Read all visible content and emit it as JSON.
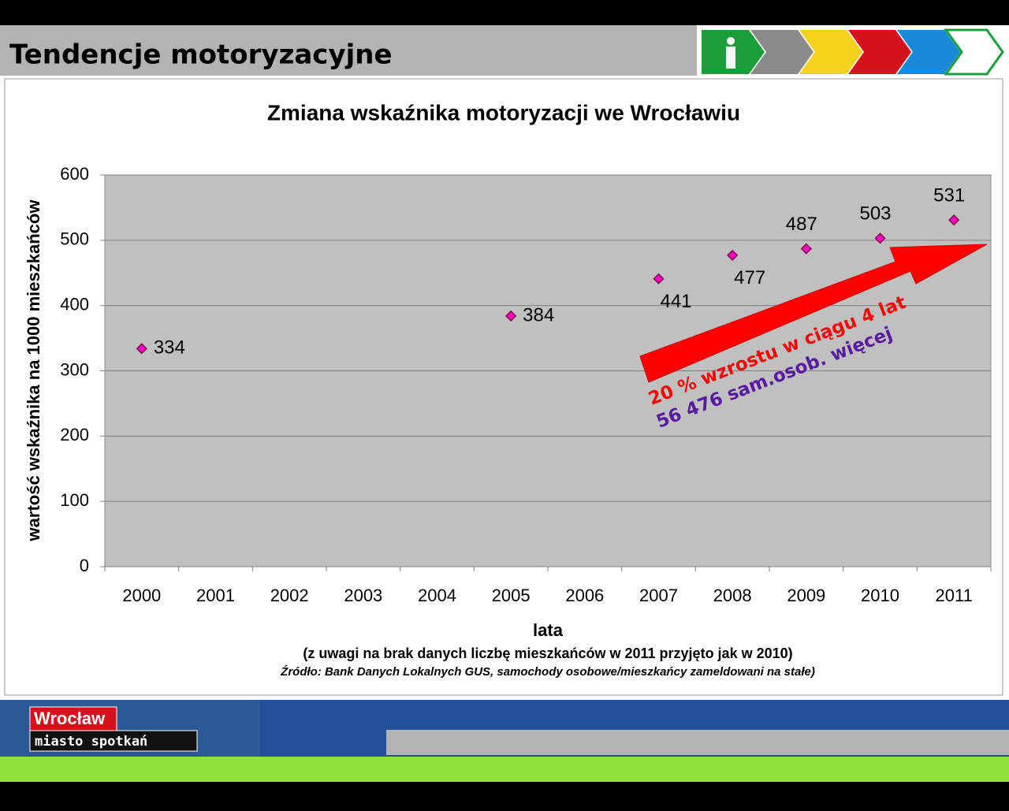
{
  "header": {
    "title": "Tendencje motoryzacyjne"
  },
  "footer": {
    "logo_top": "Wrocław",
    "logo_bottom": "miasto spotkań"
  },
  "chart_data": {
    "type": "scatter",
    "title": "Zmiana wskaźnika motoryzacji we Wrocławiu",
    "x_label": "lata",
    "y_label": "wartość wskaźnika na 1000 mieszkańców",
    "notes": [
      "(z uwagi na brak danych liczbę mieszkańców w 2011 przyjęto jak w 2010)",
      "Źródło: Bank Danych Lokalnych GUS, samochody osobowe/mieszkańcy zameldowani na stałe)"
    ],
    "annotations": [
      "20 % wzrostu w ciągu 4 lat",
      "56 476 sam.osob. więcej"
    ],
    "categories": [
      "2000",
      "2001",
      "2002",
      "2003",
      "2004",
      "2005",
      "2006",
      "2007",
      "2008",
      "2009",
      "2010",
      "2011"
    ],
    "values": [
      334,
      null,
      null,
      null,
      null,
      384,
      null,
      441,
      477,
      487,
      503,
      531
    ],
    "color": "#ff00cc",
    "ylim": [
      0,
      600
    ],
    "yticks": [
      0,
      100,
      200,
      300,
      400,
      500,
      600
    ],
    "grid": true
  }
}
